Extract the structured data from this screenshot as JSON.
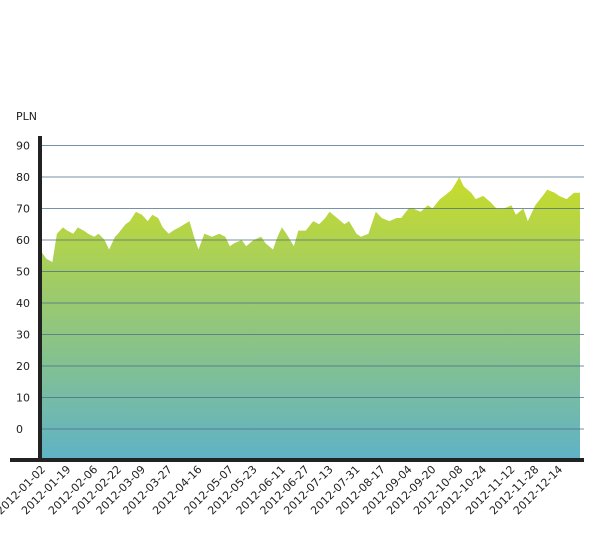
{
  "chart_data": {
    "type": "area",
    "title": "",
    "xlabel": "",
    "ylabel": "PLN",
    "ylim": [
      -10,
      90
    ],
    "yticks": [
      0,
      10,
      20,
      30,
      40,
      50,
      60,
      70,
      80,
      90
    ],
    "xtick_labels": [
      "2012-01-02",
      "2012-01-19",
      "2012-02-06",
      "2012-02-22",
      "2012-03-09",
      "2012-03-27",
      "2012-04-16",
      "2012-05-07",
      "2012-05-23",
      "2012-06-11",
      "2012-06-27",
      "2012-07-13",
      "2012-07-31",
      "2012-08-17",
      "2012-09-04",
      "2012-09-20",
      "2012-10-08",
      "2012-10-24",
      "2012-11-12",
      "2012-11-28",
      "2012-12-14"
    ],
    "grid": true,
    "colors": {
      "top": "#c8dc2a",
      "bottom": "#5fb2c8",
      "grid": "#4a6e86",
      "axis": "#222222"
    },
    "series": [
      {
        "x": [
          "2012-01-02",
          "2012-01-05",
          "2012-01-09",
          "2012-01-12",
          "2012-01-16",
          "2012-01-19",
          "2012-01-23",
          "2012-01-26",
          "2012-01-30",
          "2012-02-02",
          "2012-02-06",
          "2012-02-09",
          "2012-02-13",
          "2012-02-16",
          "2012-02-20",
          "2012-02-22",
          "2012-02-27",
          "2012-03-01",
          "2012-03-05",
          "2012-03-09",
          "2012-03-13",
          "2012-03-16",
          "2012-03-20",
          "2012-03-23",
          "2012-03-27",
          "2012-03-30",
          "2012-04-03",
          "2012-04-10",
          "2012-04-13",
          "2012-04-16",
          "2012-04-20",
          "2012-04-25",
          "2012-04-30",
          "2012-05-04",
          "2012-05-07",
          "2012-05-10",
          "2012-05-15",
          "2012-05-18",
          "2012-05-23",
          "2012-05-28",
          "2012-05-31",
          "2012-06-05",
          "2012-06-08",
          "2012-06-11",
          "2012-06-14",
          "2012-06-19",
          "2012-06-22",
          "2012-06-27",
          "2012-07-02",
          "2012-07-06",
          "2012-07-10",
          "2012-07-13",
          "2012-07-18",
          "2012-07-23",
          "2012-07-26",
          "2012-07-31",
          "2012-08-03",
          "2012-08-08",
          "2012-08-13",
          "2012-08-17",
          "2012-08-22",
          "2012-08-27",
          "2012-08-30",
          "2012-09-04",
          "2012-09-07",
          "2012-09-12",
          "2012-09-17",
          "2012-09-20",
          "2012-09-25",
          "2012-09-28",
          "2012-10-03",
          "2012-10-08",
          "2012-10-11",
          "2012-10-16",
          "2012-10-19",
          "2012-10-24",
          "2012-10-29",
          "2012-11-02",
          "2012-11-07",
          "2012-11-12",
          "2012-11-15",
          "2012-11-20",
          "2012-11-23",
          "2012-11-28",
          "2012-12-03",
          "2012-12-06",
          "2012-12-11",
          "2012-12-14",
          "2012-12-19",
          "2012-12-24",
          "2012-12-28"
        ],
        "values": [
          56,
          54,
          53,
          62,
          64,
          63,
          62,
          64,
          63,
          62,
          61,
          62,
          60,
          57,
          61,
          62,
          65,
          66,
          69,
          68,
          66,
          68,
          67,
          64,
          62,
          63,
          64,
          66,
          61,
          57,
          62,
          61,
          62,
          61,
          58,
          59,
          60,
          58,
          60,
          61,
          59,
          57,
          61,
          64,
          62,
          58,
          63,
          63,
          66,
          65,
          67,
          69,
          67,
          65,
          66,
          62,
          61,
          62,
          69,
          67,
          66,
          67,
          67,
          70,
          70,
          69,
          71,
          70,
          73,
          74,
          76,
          80,
          77,
          75,
          73,
          74,
          72,
          70,
          70,
          71,
          68,
          70,
          66,
          71,
          74,
          76,
          75,
          74,
          73,
          75,
          75
        ]
      }
    ]
  }
}
